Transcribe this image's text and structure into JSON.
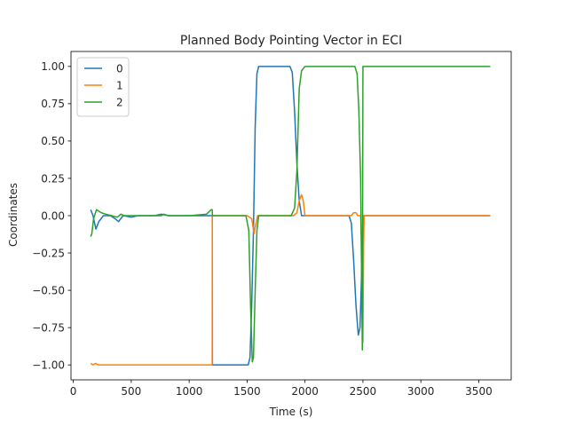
{
  "chart_data": {
    "type": "line",
    "title": "Planned Body Pointing Vector in ECI",
    "xlabel": "Time (s)",
    "ylabel": "Coordinates",
    "xlim": [
      -20,
      3780
    ],
    "ylim": [
      -1.1,
      1.1
    ],
    "xticks": [
      0,
      500,
      1000,
      1500,
      2000,
      2500,
      3000,
      3500
    ],
    "yticks": [
      -1.0,
      -0.75,
      -0.5,
      -0.25,
      0.0,
      0.25,
      0.5,
      0.75,
      1.0
    ],
    "ytick_labels": [
      "−1.00",
      "−0.75",
      "−0.50",
      "−0.25",
      "0.00",
      "0.25",
      "0.50",
      "0.75",
      "1.00"
    ],
    "legend_position": "top-left",
    "grid": false,
    "series": [
      {
        "name": "0",
        "color": "#1f77b4",
        "points": [
          [
            150,
            0.04
          ],
          [
            170,
            0.0
          ],
          [
            195,
            -0.09
          ],
          [
            220,
            -0.04
          ],
          [
            260,
            0.0
          ],
          [
            320,
            0.0
          ],
          [
            360,
            -0.02
          ],
          [
            390,
            -0.04
          ],
          [
            430,
            0.0
          ],
          [
            500,
            -0.01
          ],
          [
            560,
            0.0
          ],
          [
            700,
            0.0
          ],
          [
            760,
            0.01
          ],
          [
            820,
            0.0
          ],
          [
            1000,
            0.0
          ],
          [
            1150,
            0.0
          ],
          [
            1199,
            0.0
          ],
          [
            1200,
            -0.02
          ],
          [
            1201,
            -1.0
          ],
          [
            1300,
            -1.0
          ],
          [
            1400,
            -1.0
          ],
          [
            1510,
            -1.0
          ],
          [
            1525,
            -0.95
          ],
          [
            1540,
            -0.6
          ],
          [
            1555,
            -0.1
          ],
          [
            1570,
            0.6
          ],
          [
            1585,
            0.95
          ],
          [
            1600,
            1.0
          ],
          [
            1700,
            1.0
          ],
          [
            1800,
            1.0
          ],
          [
            1870,
            1.0
          ],
          [
            1890,
            0.96
          ],
          [
            1910,
            0.7
          ],
          [
            1930,
            0.35
          ],
          [
            1950,
            0.1
          ],
          [
            1970,
            0.0
          ],
          [
            2000,
            0.0
          ],
          [
            2300,
            0.0
          ],
          [
            2380,
            0.0
          ],
          [
            2400,
            -0.05
          ],
          [
            2420,
            -0.3
          ],
          [
            2440,
            -0.6
          ],
          [
            2460,
            -0.8
          ],
          [
            2475,
            -0.75
          ],
          [
            2490,
            -0.35
          ],
          [
            2505,
            0.0
          ],
          [
            2520,
            0.0
          ],
          [
            3000,
            0.0
          ],
          [
            3600,
            0.0
          ]
        ]
      },
      {
        "name": "1",
        "color": "#ff7f0e",
        "points": [
          [
            150,
            -0.99
          ],
          [
            170,
            -1.0
          ],
          [
            190,
            -0.99
          ],
          [
            220,
            -1.0
          ],
          [
            400,
            -1.0
          ],
          [
            800,
            -1.0
          ],
          [
            1000,
            -1.0
          ],
          [
            1199,
            -1.0
          ],
          [
            1200,
            0.0
          ],
          [
            1300,
            0.0
          ],
          [
            1500,
            0.0
          ],
          [
            1540,
            -0.02
          ],
          [
            1560,
            -0.12
          ],
          [
            1575,
            -0.06
          ],
          [
            1590,
            0.0
          ],
          [
            1700,
            0.0
          ],
          [
            1900,
            0.0
          ],
          [
            1930,
            0.02
          ],
          [
            1950,
            0.1
          ],
          [
            1970,
            0.14
          ],
          [
            1985,
            0.1
          ],
          [
            2000,
            0.0
          ],
          [
            2100,
            0.0
          ],
          [
            2300,
            0.0
          ],
          [
            2400,
            0.0
          ],
          [
            2420,
            0.02
          ],
          [
            2440,
            0.02
          ],
          [
            2455,
            0.0
          ],
          [
            2480,
            0.0
          ],
          [
            2495,
            -0.3
          ],
          [
            2500,
            -0.85
          ],
          [
            2506,
            -0.2
          ],
          [
            2510,
            0.0
          ],
          [
            3000,
            0.0
          ],
          [
            3600,
            0.0
          ]
        ]
      },
      {
        "name": "2",
        "color": "#2ca02c",
        "points": [
          [
            150,
            -0.14
          ],
          [
            160,
            -0.12
          ],
          [
            175,
            -0.02
          ],
          [
            200,
            0.04
          ],
          [
            240,
            0.02
          ],
          [
            280,
            0.01
          ],
          [
            330,
            0.0
          ],
          [
            380,
            -0.01
          ],
          [
            410,
            0.01
          ],
          [
            440,
            0.0
          ],
          [
            500,
            0.0
          ],
          [
            600,
            0.0
          ],
          [
            760,
            0.0
          ],
          [
            780,
            0.01
          ],
          [
            820,
            0.0
          ],
          [
            1000,
            0.0
          ],
          [
            1150,
            0.01
          ],
          [
            1190,
            0.04
          ],
          [
            1199,
            0.04
          ],
          [
            1201,
            0.0
          ],
          [
            1300,
            0.0
          ],
          [
            1490,
            0.0
          ],
          [
            1515,
            -0.1
          ],
          [
            1530,
            -0.6
          ],
          [
            1545,
            -0.98
          ],
          [
            1555,
            -0.95
          ],
          [
            1570,
            -0.5
          ],
          [
            1585,
            -0.1
          ],
          [
            1600,
            0.0
          ],
          [
            1700,
            0.0
          ],
          [
            1880,
            0.0
          ],
          [
            1910,
            0.05
          ],
          [
            1930,
            0.3
          ],
          [
            1950,
            0.85
          ],
          [
            1970,
            0.97
          ],
          [
            2000,
            1.0
          ],
          [
            2300,
            1.0
          ],
          [
            2430,
            1.0
          ],
          [
            2450,
            0.95
          ],
          [
            2465,
            0.7
          ],
          [
            2480,
            0.25
          ],
          [
            2495,
            -0.9
          ],
          [
            2500,
            1.0
          ],
          [
            2600,
            1.0
          ],
          [
            3000,
            1.0
          ],
          [
            3600,
            1.0
          ]
        ]
      }
    ]
  }
}
